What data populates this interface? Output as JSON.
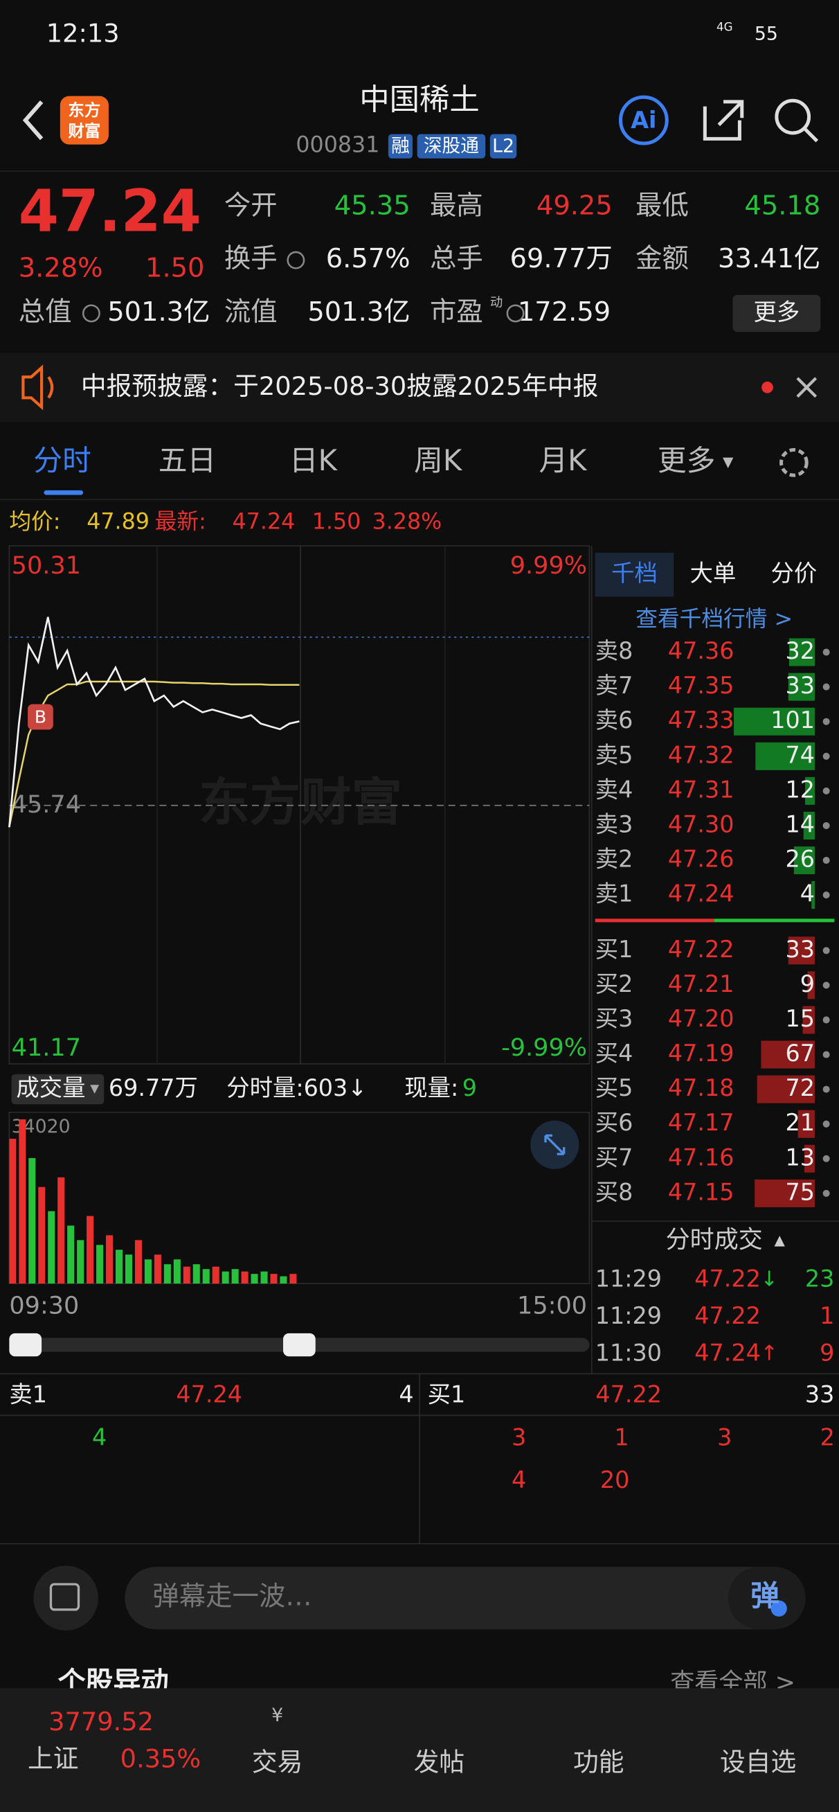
{
  "status_bar": {
    "time": "12:13",
    "network": "4G",
    "battery": "55"
  },
  "header": {
    "logo": [
      "东方",
      "财富"
    ],
    "title": "中国稀土",
    "code": "000831",
    "tags": [
      "融",
      "深股通",
      "L2"
    ],
    "ai": "Ai"
  },
  "quote": {
    "price": "47.24",
    "change_pct": "3.28%",
    "change": "1.50",
    "stats": [
      {
        "label": "今开",
        "value": "45.35"
      },
      {
        "label": "最高",
        "value": "49.25"
      },
      {
        "label": "最低",
        "value": "45.18"
      },
      {
        "label": "换手",
        "value": "6.57%"
      },
      {
        "label": "总手",
        "value": "69.77万"
      },
      {
        "label": "金额",
        "value": "33.41亿"
      },
      {
        "label": "总值",
        "value": "501.3亿"
      },
      {
        "label": "流值",
        "value": "501.3亿"
      },
      {
        "label": "市盈",
        "sup": "动",
        "value": "172.59"
      }
    ],
    "more": "更多"
  },
  "notice": "中报预披露：于2025-08-30披露2025年中报",
  "tabs": [
    "分时",
    "五日",
    "日K",
    "周K",
    "月K",
    "更多"
  ],
  "intraday": {
    "avg_label": "均价:",
    "avg": "47.89",
    "latest_label": "最新:",
    "latest": "47.24",
    "change": "1.50",
    "change_pct": "3.28%",
    "pct_top": "9.99%",
    "pct_bottom": "-9.99%",
    "watermark": "东方财富",
    "marker": "B",
    "ylim": [
      41.17,
      50.31
    ],
    "yticks": [
      41.17,
      45.74,
      50.31
    ],
    "xlim": [
      0,
      240
    ],
    "xticks": [
      {
        "value": 0,
        "label": "09:30"
      },
      {
        "value": 240,
        "label": "15:00"
      }
    ],
    "x": [
      0,
      4,
      8,
      12,
      16,
      20,
      24,
      28,
      32,
      36,
      40,
      44,
      48,
      52,
      56,
      60,
      64,
      68,
      72,
      76,
      80,
      84,
      88,
      92,
      96,
      100,
      104,
      108,
      112,
      116,
      120
    ],
    "price": {
      "color": "#f2f2f2",
      "values": [
        45.35,
        47.2,
        48.6,
        48.3,
        49.1,
        48.2,
        48.5,
        47.9,
        48.1,
        47.7,
        47.9,
        48.2,
        47.8,
        47.9,
        48.0,
        47.6,
        47.7,
        47.5,
        47.6,
        47.5,
        47.4,
        47.45,
        47.4,
        47.35,
        47.3,
        47.35,
        47.2,
        47.15,
        47.1,
        47.2,
        47.24
      ]
    },
    "avg_line": {
      "color": "#e6d36a",
      "values": [
        45.35,
        46.2,
        47.0,
        47.4,
        47.7,
        47.8,
        47.9,
        47.9,
        47.95,
        47.95,
        47.95,
        47.95,
        47.95,
        47.95,
        47.95,
        47.95,
        47.94,
        47.93,
        47.93,
        47.92,
        47.92,
        47.91,
        47.91,
        47.9,
        47.9,
        47.9,
        47.9,
        47.89,
        47.89,
        47.89,
        47.89
      ]
    }
  },
  "volume": {
    "label": "成交量",
    "total": "69.77万",
    "minute_label": "分时量:603↓",
    "current_label": "现量:",
    "current": "9",
    "ylim": [
      0,
      34020
    ],
    "x": [
      0,
      4,
      8,
      12,
      16,
      20,
      24,
      28,
      32,
      36,
      40,
      44,
      48,
      52,
      56,
      60,
      64,
      68,
      72,
      76,
      80,
      84,
      88,
      92,
      96,
      100,
      104,
      108,
      112,
      116
    ],
    "values": [
      30000,
      34020,
      26000,
      20000,
      15000,
      22000,
      12000,
      9000,
      14000,
      8000,
      10000,
      7000,
      6000,
      9000,
      5000,
      6000,
      4000,
      5000,
      3500,
      4000,
      3000,
      3500,
      2500,
      3000,
      2500,
      2000,
      2500,
      2000,
      1500,
      2000
    ],
    "colors": [
      "#e8312f",
      "#e8312f",
      "#27c13c",
      "#e8312f",
      "#27c13c",
      "#e8312f",
      "#27c13c",
      "#27c13c",
      "#e8312f",
      "#27c13c",
      "#e8312f",
      "#27c13c",
      "#27c13c",
      "#e8312f",
      "#27c13c",
      "#e8312f",
      "#27c13c",
      "#27c13c",
      "#e8312f",
      "#27c13c",
      "#27c13c",
      "#e8312f",
      "#27c13c",
      "#27c13c",
      "#e8312f",
      "#27c13c",
      "#27c13c",
      "#e8312f",
      "#27c13c",
      "#e8312f"
    ]
  },
  "order_book": {
    "tabs": [
      "千档",
      "大单",
      "分价"
    ],
    "link": "查看千档行情 >",
    "asks": [
      {
        "label": "卖8",
        "price": "47.36",
        "volume": 32
      },
      {
        "label": "卖7",
        "price": "47.35",
        "volume": 33
      },
      {
        "label": "卖6",
        "price": "47.33",
        "volume": 101
      },
      {
        "label": "卖5",
        "price": "47.32",
        "volume": 74
      },
      {
        "label": "卖4",
        "price": "47.31",
        "volume": 12
      },
      {
        "label": "卖3",
        "price": "47.30",
        "volume": 14
      },
      {
        "label": "卖2",
        "price": "47.26",
        "volume": 26
      },
      {
        "label": "卖1",
        "price": "47.24",
        "volume": 4
      }
    ],
    "bids": [
      {
        "label": "买1",
        "price": "47.22",
        "volume": 33
      },
      {
        "label": "买2",
        "price": "47.21",
        "volume": 9
      },
      {
        "label": "买3",
        "price": "47.20",
        "volume": 15
      },
      {
        "label": "买4",
        "price": "47.19",
        "volume": 67
      },
      {
        "label": "买5",
        "price": "47.18",
        "volume": 72
      },
      {
        "label": "买6",
        "price": "47.17",
        "volume": 21
      },
      {
        "label": "买7",
        "price": "47.16",
        "volume": 13
      },
      {
        "label": "买8",
        "price": "47.15",
        "volume": 75
      }
    ],
    "trades_title": "分时成交",
    "trades": [
      {
        "time": "11:29",
        "price": "47.22",
        "dir": "↓",
        "volume": "23"
      },
      {
        "time": "11:29",
        "price": "47.22",
        "dir": "",
        "volume": "1"
      },
      {
        "time": "11:30",
        "price": "47.24",
        "dir": "↑",
        "volume": "9"
      }
    ]
  },
  "level1": {
    "ask": {
      "label": "卖1",
      "price": "47.24",
      "volume": "4"
    },
    "ask_rows": [
      [
        "4"
      ]
    ],
    "bid": {
      "label": "买1",
      "price": "47.22",
      "volume": "33"
    },
    "bid_rows": [
      [
        "3",
        "1",
        "3",
        "2"
      ],
      [
        "4",
        "20"
      ]
    ]
  },
  "danmu": {
    "placeholder": "弹幕走一波…",
    "button": "弹"
  },
  "section": {
    "title": "个股异动",
    "link": "查看全部 >"
  },
  "nav": {
    "index": {
      "price": "3779.52",
      "name": "上证",
      "change_pct": "0.35%"
    },
    "items": [
      "交易",
      "发帖",
      "功能",
      "设自选"
    ]
  }
}
